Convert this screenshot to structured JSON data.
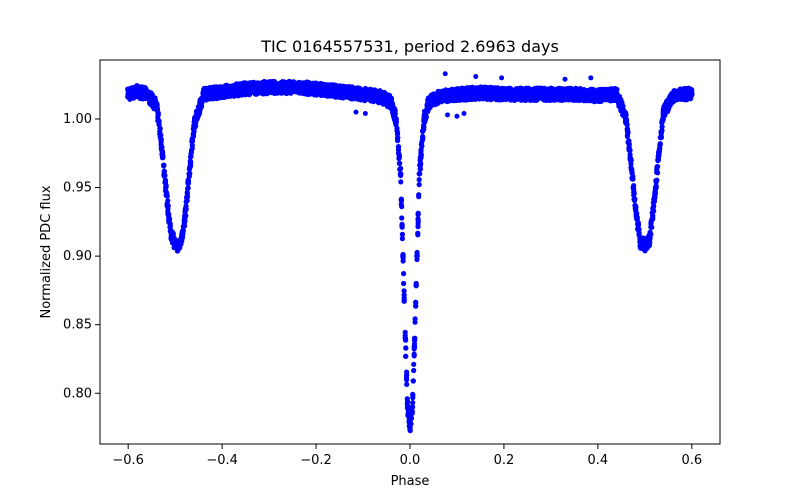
{
  "chart_data": {
    "type": "scatter",
    "title": "TIC 0164557531, period 2.6963 days",
    "xlabel": "Phase",
    "ylabel": "Normalized PDC flux",
    "xlim": [
      -0.66,
      0.66
    ],
    "ylim": [
      0.763,
      1.043
    ],
    "x_ticks": [
      -0.6,
      -0.4,
      -0.2,
      0.0,
      0.2,
      0.4,
      0.6
    ],
    "x_tick_labels": [
      "−0.6",
      "−0.4",
      "−0.2",
      "0.0",
      "0.2",
      "0.4",
      "0.6"
    ],
    "y_ticks": [
      0.8,
      0.85,
      0.9,
      0.95,
      1.0
    ],
    "y_tick_labels": [
      "0.80",
      "0.85",
      "0.90",
      "0.95",
      "1.00"
    ],
    "grid": false,
    "legend": "none",
    "marker_color": "#0000ff",
    "series": [
      {
        "x": [
          -0.6,
          -0.58,
          -0.56,
          -0.54,
          -0.53,
          -0.52,
          -0.51,
          -0.5,
          -0.49,
          -0.48,
          -0.47,
          -0.46,
          -0.44,
          -0.4,
          -0.35,
          -0.3,
          -0.25,
          -0.2,
          -0.15,
          -0.1,
          -0.06,
          -0.04,
          -0.03,
          -0.02,
          -0.015,
          -0.01,
          -0.005,
          0.0,
          0.005,
          0.01,
          0.015,
          0.02,
          0.03,
          0.04,
          0.06,
          0.1,
          0.15,
          0.2,
          0.25,
          0.3,
          0.35,
          0.4,
          0.44,
          0.46,
          0.47,
          0.48,
          0.49,
          0.5,
          0.51,
          0.52,
          0.53,
          0.54,
          0.56,
          0.58,
          0.6
        ],
        "y": [
          1.018,
          1.02,
          1.018,
          1.01,
          0.985,
          0.95,
          0.918,
          0.908,
          0.908,
          0.925,
          0.96,
          0.995,
          1.018,
          1.02,
          1.022,
          1.023,
          1.023,
          1.022,
          1.02,
          1.018,
          1.016,
          1.012,
          1.0,
          0.96,
          0.9,
          0.84,
          0.79,
          0.775,
          0.79,
          0.84,
          0.9,
          0.96,
          1.0,
          1.012,
          1.016,
          1.018,
          1.019,
          1.018,
          1.018,
          1.018,
          1.018,
          1.017,
          1.018,
          1.0,
          0.97,
          0.935,
          0.91,
          0.908,
          0.912,
          0.94,
          0.975,
          1.005,
          1.016,
          1.018,
          1.018
        ]
      }
    ],
    "outliers": {
      "x": [
        0.075,
        0.14,
        0.195,
        0.33,
        0.385,
        0.08,
        0.1,
        0.115,
        -0.115,
        -0.095
      ],
      "y": [
        1.033,
        1.031,
        1.03,
        1.029,
        1.03,
        1.003,
        1.002,
        1.004,
        1.005,
        1.004
      ]
    }
  }
}
